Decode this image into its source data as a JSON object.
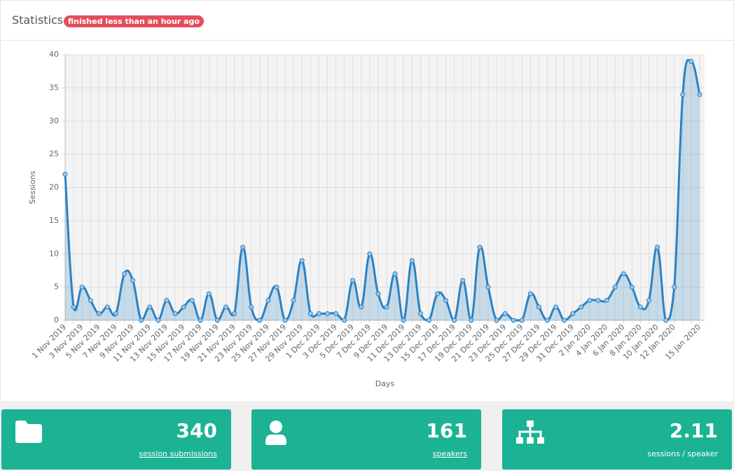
{
  "header": {
    "title": "Statistics",
    "badge": "finished less than an hour ago"
  },
  "chart_data": {
    "type": "line",
    "y_label": "Sessions",
    "x_label": "Days",
    "categories": [
      "1 Nov 2019",
      null,
      "3 Nov 2019",
      null,
      "5 Nov 2019",
      null,
      "7 Nov 2019",
      null,
      "9 Nov 2019",
      null,
      "11 Nov 2019",
      null,
      "13 Nov 2019",
      null,
      "15 Nov 2019",
      null,
      "17 Nov 2019",
      null,
      "19 Nov 2019",
      null,
      "21 Nov 2019",
      null,
      "23 Nov 2019",
      null,
      "25 Nov 2019",
      null,
      "27 Nov 2019",
      null,
      "29 Nov 2019",
      null,
      "1 Dec 2019",
      null,
      "3 Dec 2019",
      null,
      "5 Dec 2019",
      null,
      "7 Dec 2019",
      null,
      "9 Dec 2019",
      null,
      "11 Dec 2019",
      null,
      "13 Dec 2019",
      null,
      "15 Dec 2019",
      null,
      "17 Dec 2019",
      null,
      "19 Dec 2019",
      null,
      "21 Dec 2019",
      null,
      "23 Dec 2019",
      null,
      "25 Dec 2019",
      null,
      "27 Dec 2019",
      null,
      "29 Dec 2019",
      null,
      "31 Dec 2019",
      null,
      "2 Jan 2020",
      null,
      "4 Jan 2020",
      null,
      "6 Jan 2020",
      null,
      "8 Jan 2020",
      null,
      "10 Jan 2020",
      null,
      "12 Jan 2020",
      null,
      null,
      "15 Jan 2020"
    ],
    "series": [
      {
        "name": "Sessions",
        "color": "#2b82c4",
        "fill": "rgba(43,130,196,0.22)",
        "values": [
          22,
          2,
          5,
          3,
          1,
          2,
          1,
          7,
          6,
          0,
          2,
          0,
          3,
          1,
          2,
          3,
          0,
          4,
          0,
          2,
          1,
          11,
          2,
          0,
          3,
          5,
          0,
          3,
          9,
          1,
          1,
          1,
          1,
          0,
          6,
          2,
          10,
          4,
          2,
          7,
          0,
          9,
          1,
          0,
          4,
          3,
          0,
          6,
          0,
          11,
          5,
          0,
          1,
          0,
          0,
          4,
          2,
          0,
          2,
          0,
          1,
          2,
          3,
          3,
          3,
          5,
          7,
          5,
          2,
          3,
          11,
          0,
          5,
          34,
          39,
          34
        ]
      }
    ],
    "ylim": [
      0,
      40
    ],
    "yticks": [
      0,
      5,
      10,
      15,
      20,
      25,
      30,
      35,
      40
    ],
    "grid": true
  },
  "cards": [
    {
      "value": "340",
      "label": "session submissions"
    },
    {
      "value": "161",
      "label": "speakers"
    },
    {
      "value": "2.11",
      "label": "sessions / speaker"
    }
  ]
}
